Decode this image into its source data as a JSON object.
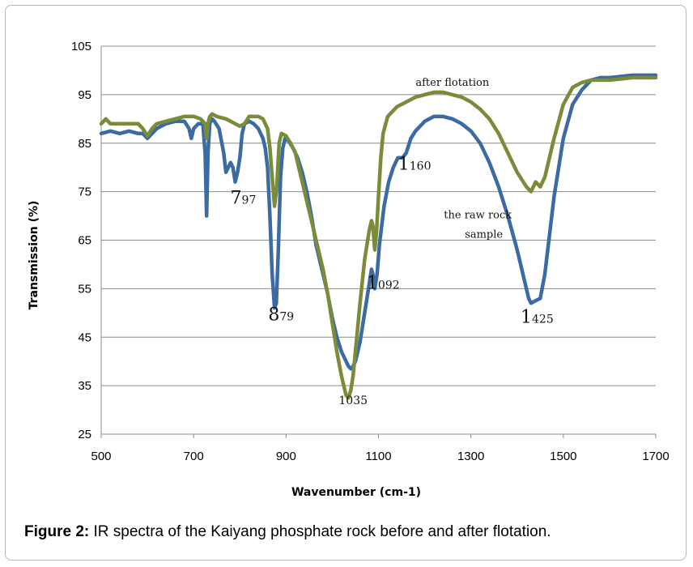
{
  "chart_data": {
    "type": "line",
    "title": "",
    "xlabel": "Wavenumber (cm-1)",
    "ylabel": "Transmission (%)",
    "xlim": [
      500,
      1700
    ],
    "ylim": [
      25,
      105
    ],
    "xticks": [
      "500",
      "700",
      "900",
      "1100",
      "1300",
      "1500",
      "1700"
    ],
    "yticks": [
      "25",
      "35",
      "45",
      "55",
      "65",
      "75",
      "85",
      "95",
      "105"
    ],
    "grid": "horizontal",
    "series": [
      {
        "name": "the raw rock sample",
        "color": "#3c6aa3",
        "x": [
          500,
          520,
          540,
          560,
          580,
          590,
          600,
          610,
          620,
          640,
          660,
          680,
          690,
          695,
          700,
          710,
          720,
          725,
          728,
          731,
          735,
          740,
          745,
          755,
          765,
          770,
          775,
          780,
          785,
          790,
          795,
          800,
          805,
          810,
          820,
          830,
          840,
          850,
          855,
          860,
          865,
          870,
          875,
          879,
          883,
          888,
          893,
          898,
          905,
          915,
          925,
          935,
          945,
          955,
          960,
          965,
          970,
          980,
          990,
          1000,
          1010,
          1020,
          1030,
          1035,
          1040,
          1045,
          1050,
          1060,
          1070,
          1080,
          1085,
          1088,
          1092,
          1097,
          1102,
          1112,
          1122,
          1132,
          1142,
          1152,
          1160,
          1170,
          1180,
          1200,
          1220,
          1240,
          1260,
          1280,
          1300,
          1320,
          1340,
          1360,
          1380,
          1400,
          1410,
          1420,
          1425,
          1430,
          1440,
          1450,
          1460,
          1470,
          1480,
          1500,
          1520,
          1540,
          1560,
          1580,
          1600,
          1650,
          1700
        ],
        "values": [
          87,
          87.5,
          87,
          87.5,
          87,
          87,
          86,
          87,
          88,
          89,
          89.5,
          89.5,
          88,
          86,
          88,
          89,
          89,
          83,
          70,
          83,
          89,
          90,
          89.5,
          88,
          83,
          79,
          80,
          81,
          80,
          77,
          79,
          82,
          87,
          89,
          89.5,
          89,
          88,
          86,
          84,
          80,
          70,
          58,
          51,
          52,
          62,
          78,
          84,
          86,
          85.5,
          84,
          82,
          79,
          75,
          70,
          67,
          64,
          62,
          58,
          54,
          49,
          45,
          42,
          40,
          39,
          38.5,
          39,
          40,
          44,
          50,
          56,
          59,
          58,
          55,
          58,
          64,
          72,
          77,
          80,
          82,
          82,
          83,
          86,
          87.5,
          89.5,
          90.5,
          90.5,
          90,
          89,
          87.5,
          85,
          81,
          76,
          70,
          63,
          59,
          55,
          53,
          52,
          52.5,
          53,
          58,
          66,
          74,
          86,
          93,
          96,
          98,
          98.5,
          98.5,
          99,
          99
        ]
      },
      {
        "name": "after flotation",
        "color": "#7a8b3a",
        "x": [
          500,
          510,
          520,
          540,
          560,
          580,
          590,
          600,
          610,
          620,
          640,
          660,
          680,
          700,
          715,
          725,
          728,
          731,
          735,
          740,
          750,
          770,
          790,
          800,
          810,
          820,
          840,
          850,
          860,
          865,
          870,
          875,
          880,
          885,
          890,
          900,
          910,
          920,
          930,
          940,
          950,
          960,
          965,
          970,
          980,
          990,
          1000,
          1010,
          1020,
          1030,
          1035,
          1040,
          1045,
          1050,
          1060,
          1070,
          1080,
          1085,
          1088,
          1092,
          1096,
          1100,
          1105,
          1110,
          1120,
          1140,
          1160,
          1180,
          1200,
          1220,
          1240,
          1260,
          1280,
          1300,
          1320,
          1340,
          1360,
          1380,
          1400,
          1420,
          1430,
          1440,
          1450,
          1460,
          1470,
          1480,
          1500,
          1520,
          1540,
          1560,
          1580,
          1600,
          1650,
          1700
        ],
        "values": [
          89,
          90,
          89,
          89,
          89,
          89,
          88,
          86.5,
          88,
          89,
          89.5,
          90,
          90.5,
          90.5,
          90,
          89,
          86,
          89,
          90.5,
          91,
          90.5,
          90,
          89,
          88.5,
          89,
          90.5,
          90.5,
          90,
          88,
          84,
          78,
          72,
          76,
          85,
          87,
          86.5,
          85,
          83,
          79,
          75,
          71,
          67,
          65,
          63,
          59,
          54,
          48,
          42,
          37,
          33,
          32.5,
          34,
          37,
          42,
          52,
          61,
          67,
          69,
          68,
          63,
          67,
          74,
          82,
          87,
          90.5,
          92.5,
          93.5,
          94.5,
          95,
          95.5,
          95.5,
          95,
          94.5,
          93.5,
          92,
          90,
          87,
          83,
          79,
          76,
          75,
          77,
          76,
          78,
          82,
          86,
          93,
          96.5,
          97.5,
          98,
          98,
          98,
          98.5,
          98.5
        ]
      }
    ],
    "annotations": [
      {
        "text": "after flotation",
        "x": 1260,
        "y": 96.8
      },
      {
        "text": "the raw rock",
        "x": 1315,
        "y": 69.5
      },
      {
        "text": "sample",
        "x": 1328,
        "y": 65.5
      }
    ],
    "peak_labels": [
      {
        "big": "7",
        "small": "97",
        "x": 797
      },
      {
        "big": "8",
        "small": "79",
        "x": 879
      },
      {
        "small": "1035",
        "x": 1035
      },
      {
        "big": "1",
        "small": "092",
        "x": 1092
      },
      {
        "big": "1",
        "small": "160",
        "x": 1160
      },
      {
        "big": "1",
        "small": "425",
        "x": 1425
      }
    ]
  },
  "caption": {
    "label": "Figure 2:",
    "text": "IR spectra of the Kaiyang phosphate rock before and after flotation."
  }
}
